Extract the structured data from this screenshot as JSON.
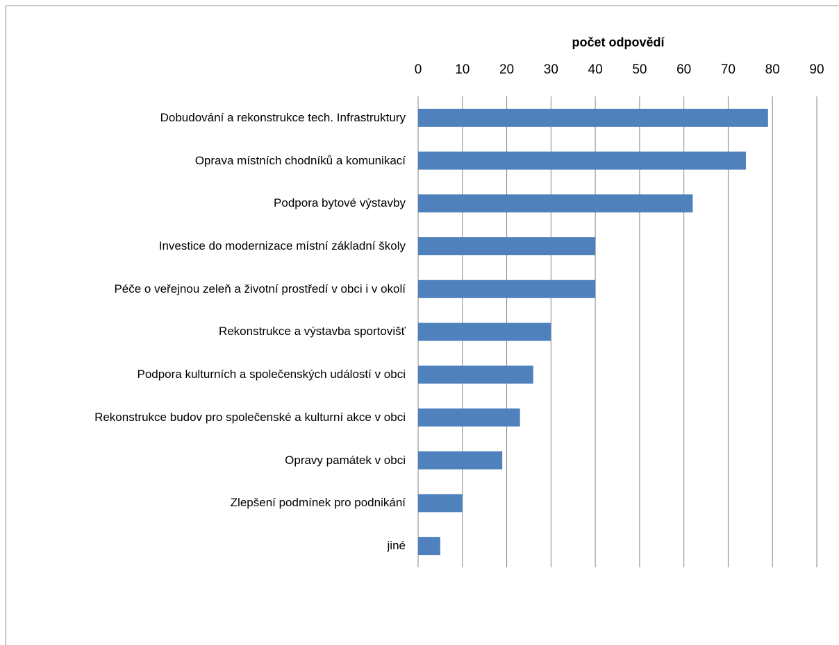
{
  "chart_data": {
    "type": "barh",
    "x_label": "počet odpovědí",
    "categories": [
      "Dobudování a rekonstrukce tech. Infrastruktury",
      "Oprava místních chodníků a komunikací",
      "Podpora bytové výstavby",
      "Investice do modernizace místní základní školy",
      "Péče o veřejnou zeleň a životní prostředí v obci i v okolí",
      "Rekonstrukce a výstavba sportovišť",
      "Podpora kulturních a společenských událostí v obci",
      "Rekonstrukce budov pro společenské a kulturní akce v obci",
      "Opravy památek v obci",
      "Zlepšení podmínek pro podnikání",
      "jiné"
    ],
    "values": [
      79,
      74,
      62,
      40,
      40,
      30,
      26,
      23,
      19,
      10,
      5
    ],
    "color": "#4f81bd",
    "xlim": [
      0,
      90
    ],
    "xticks": [
      0,
      10,
      20,
      30,
      40,
      50,
      60,
      70,
      80,
      90
    ],
    "grid": true
  }
}
